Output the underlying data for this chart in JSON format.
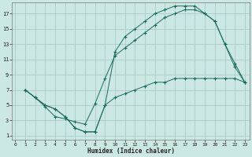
{
  "title": "",
  "xlabel": "Humidex (Indice chaleur)",
  "bg_color": "#cce8e5",
  "line_color": "#1a6b5e",
  "grid_color": "#aaccc8",
  "line1_x": [
    1,
    2,
    3,
    4,
    5,
    6,
    7,
    8,
    9,
    10,
    11,
    12,
    13,
    14,
    15,
    16,
    17,
    18,
    19,
    20,
    21,
    22,
    23
  ],
  "line1_y": [
    7,
    6,
    5,
    4.5,
    3.5,
    2,
    1.5,
    1.5,
    5,
    6,
    6.5,
    7,
    7.5,
    8,
    8,
    8.5,
    8.5,
    8.5,
    8.5,
    8.5,
    8.5,
    8.5,
    8
  ],
  "line2_x": [
    1,
    2,
    3,
    4,
    5,
    6,
    7,
    8,
    9,
    10,
    11,
    12,
    13,
    14,
    15,
    16,
    17,
    18,
    19,
    20,
    21,
    22,
    23
  ],
  "line2_y": [
    7,
    6,
    4.8,
    3.5,
    3.2,
    2.8,
    2.5,
    5.2,
    8.5,
    11.5,
    12.5,
    13.5,
    14.5,
    15.5,
    16.5,
    17,
    17.5,
    17.5,
    17,
    16,
    13,
    10.5,
    8
  ],
  "line3_x": [
    1,
    2,
    3,
    4,
    5,
    6,
    7,
    8,
    9,
    10,
    11,
    12,
    13,
    14,
    15,
    16,
    17,
    18,
    19,
    20,
    21,
    22,
    23
  ],
  "line3_y": [
    7,
    6,
    5,
    4.5,
    3.5,
    2,
    1.5,
    1.5,
    5,
    12,
    14,
    15,
    16,
    17,
    17.5,
    18,
    18,
    18,
    17,
    16,
    13,
    10,
    8
  ],
  "xlim": [
    -0.3,
    23.5
  ],
  "ylim": [
    0.5,
    18.5
  ],
  "yticks": [
    1,
    3,
    5,
    7,
    9,
    11,
    13,
    15,
    17
  ],
  "xticks": [
    0,
    1,
    2,
    3,
    4,
    5,
    6,
    7,
    8,
    9,
    10,
    11,
    12,
    13,
    14,
    15,
    16,
    17,
    18,
    19,
    20,
    21,
    22,
    23
  ]
}
